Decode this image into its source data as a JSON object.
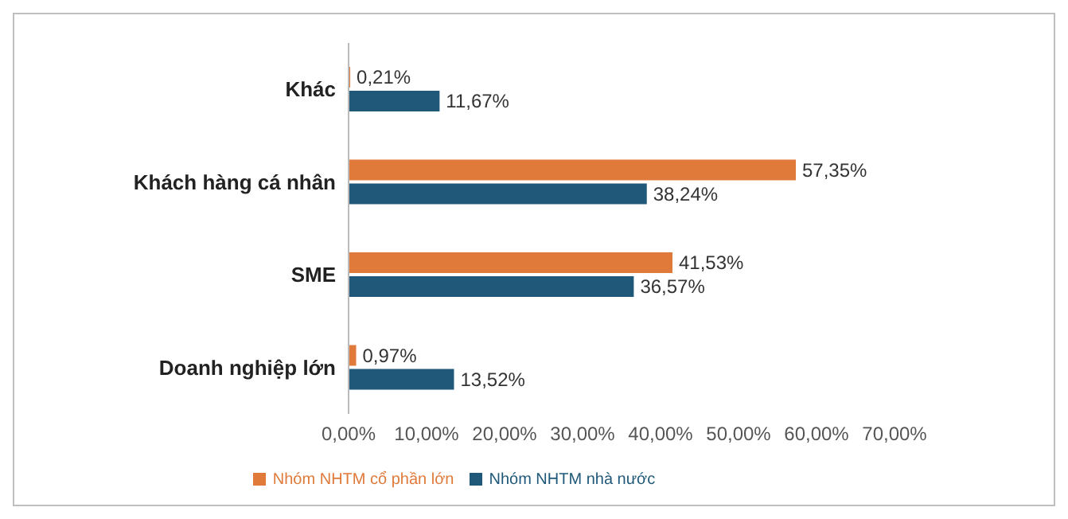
{
  "chart_data": {
    "type": "bar",
    "orientation": "horizontal",
    "categories": [
      "Khác",
      "Khách hàng cá nhân",
      "SME",
      "Doanh nghiệp lớn"
    ],
    "series": [
      {
        "name": "Nhóm NHTM cổ phần lớn",
        "color": "#e07a3a",
        "values": [
          0.21,
          57.35,
          41.53,
          0.97
        ],
        "value_labels": [
          "0,21%",
          "57,35%",
          "41,53%",
          "0,97%"
        ]
      },
      {
        "name": "Nhóm NHTM nhà nước",
        "color": "#1f5878",
        "values": [
          11.67,
          38.24,
          36.57,
          13.52
        ],
        "value_labels": [
          "11,67%",
          "38,24%",
          "36,57%",
          "13,52%"
        ]
      }
    ],
    "xlim": [
      0,
      70
    ],
    "xticks": [
      {
        "value": 0,
        "label": "0,00%"
      },
      {
        "value": 10,
        "label": "10,00%"
      },
      {
        "value": 20,
        "label": "20,00%"
      },
      {
        "value": 30,
        "label": "30,00%"
      },
      {
        "value": 40,
        "label": "40,00%"
      },
      {
        "value": 50,
        "label": "50,00%"
      },
      {
        "value": 60,
        "label": "60,00%"
      },
      {
        "value": 70,
        "label": "70,00%"
      }
    ],
    "grid": false,
    "legend": "bottom"
  }
}
